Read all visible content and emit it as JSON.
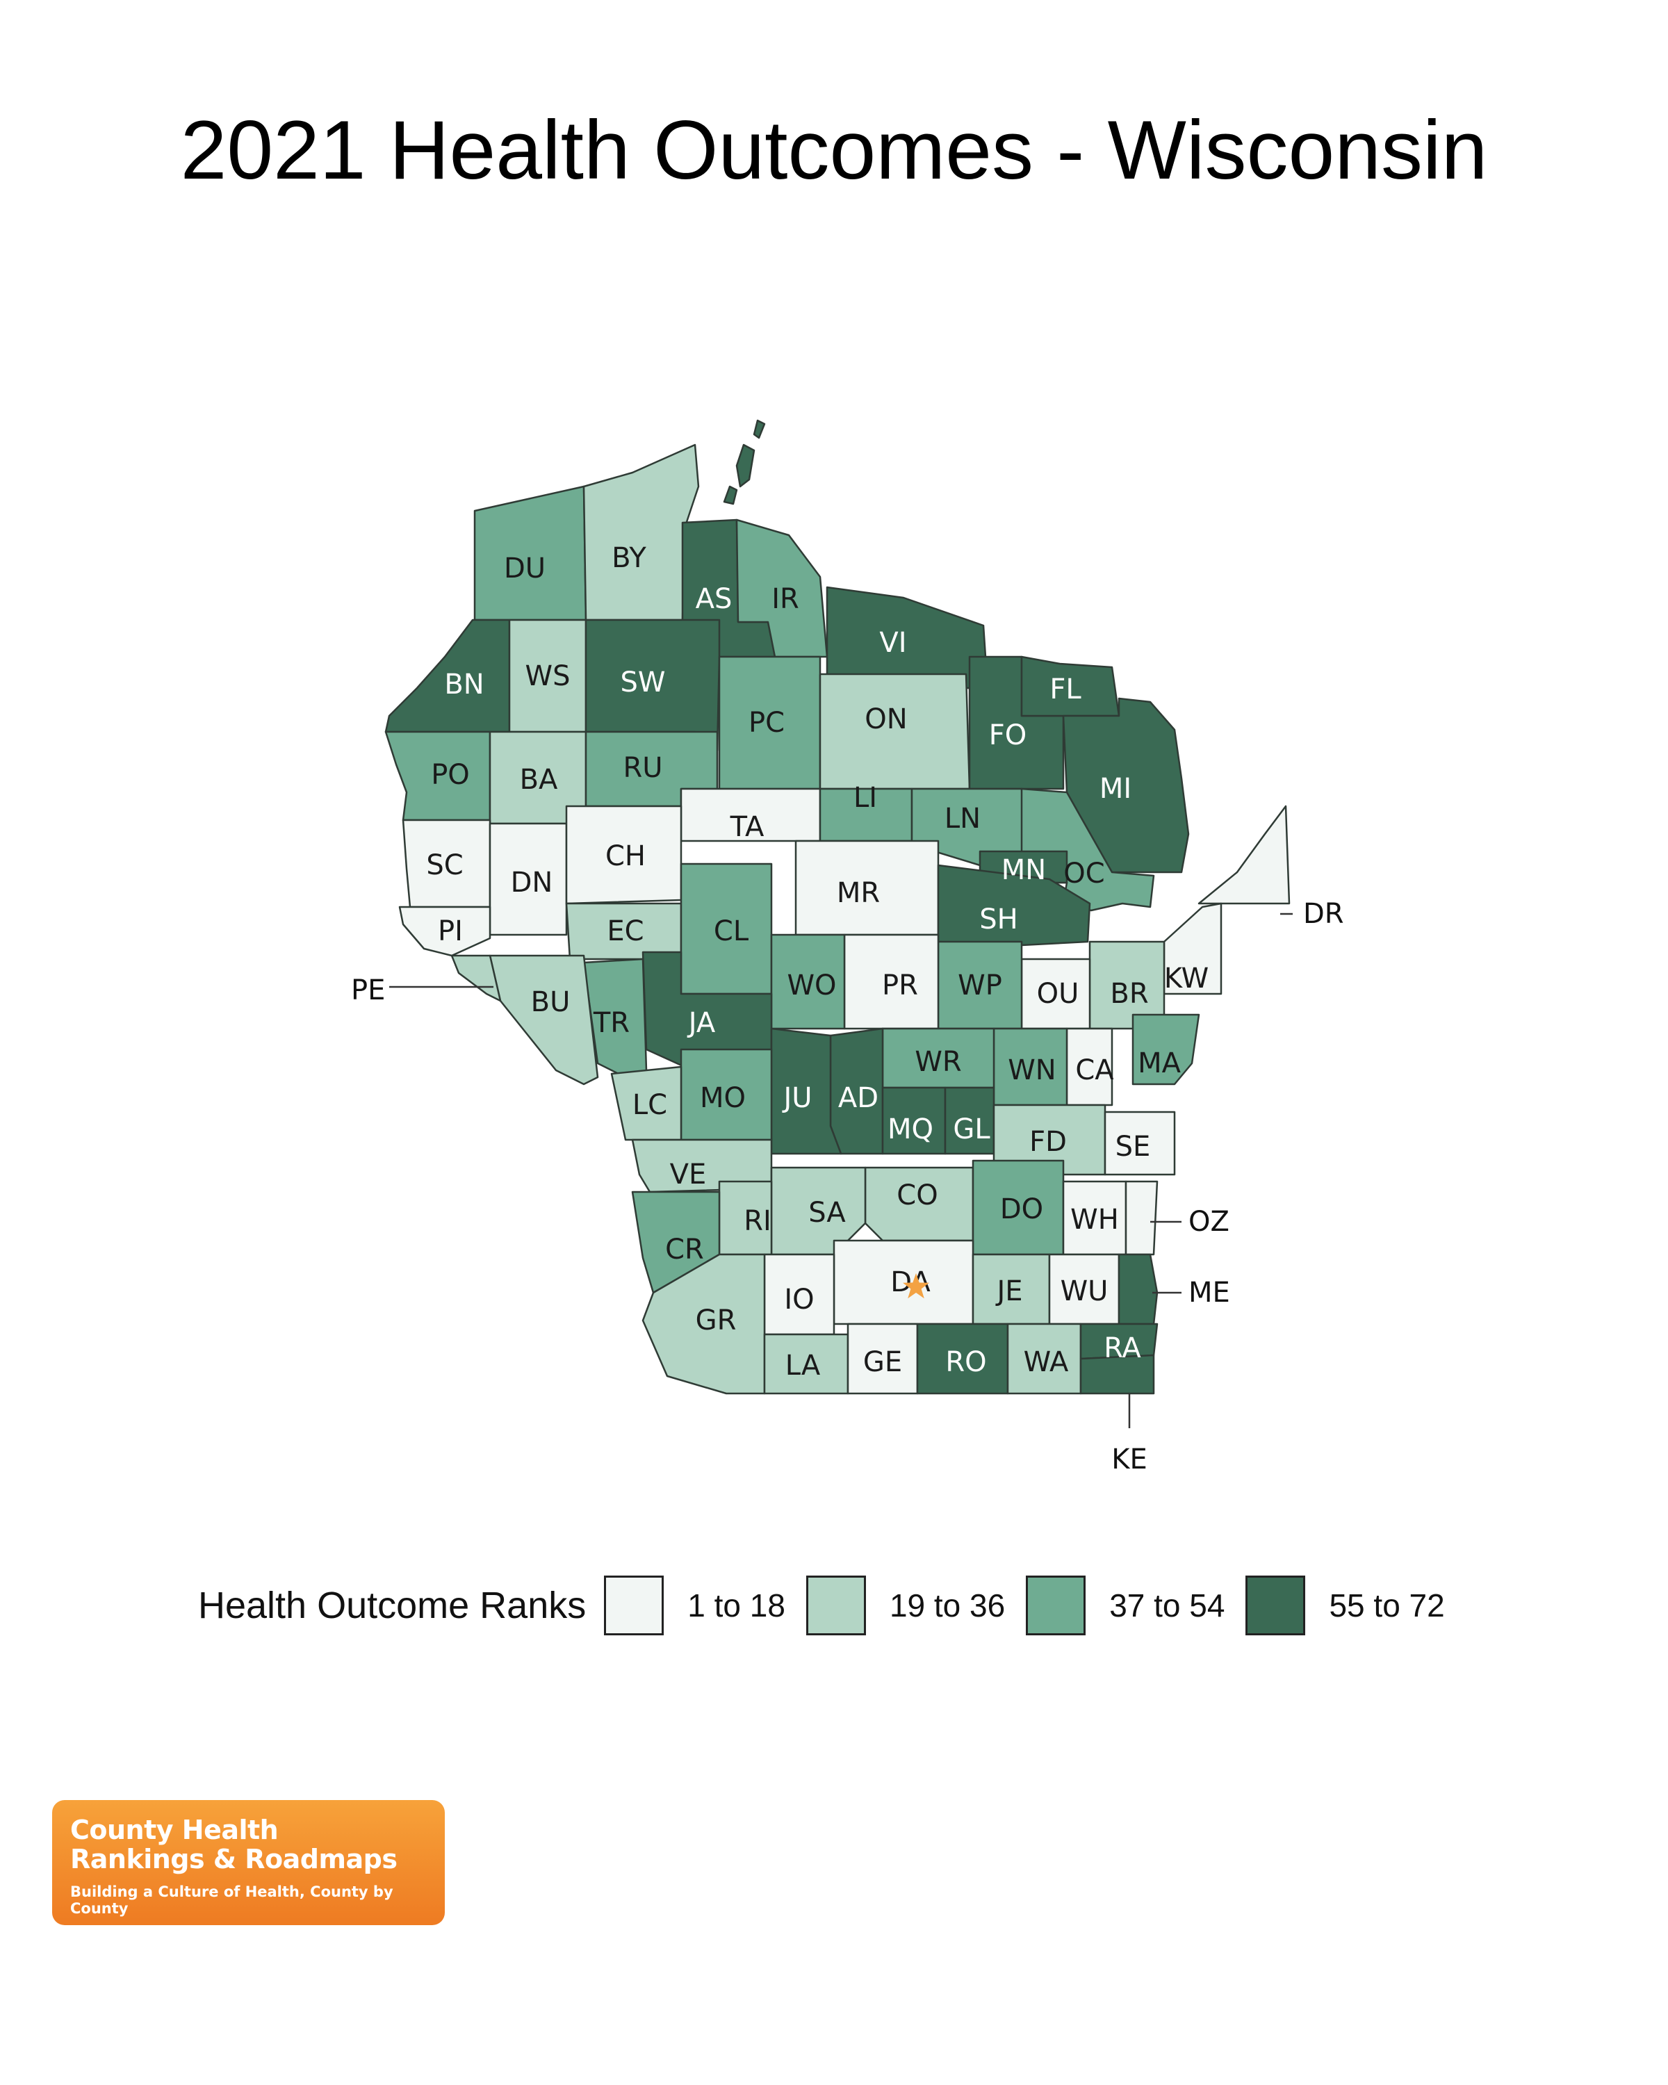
{
  "title": "2021 Health Outcomes - Wisconsin",
  "legend": {
    "title": "Health Outcome Ranks",
    "classes": [
      {
        "label": "1 to 18",
        "color": "#f2f6f4"
      },
      {
        "label": "19 to 36",
        "color": "#b3d5c5"
      },
      {
        "label": "37 to 54",
        "color": "#6fac92"
      },
      {
        "label": "55 to 72",
        "color": "#3a6a54"
      }
    ]
  },
  "highlight_icon": "star-icon",
  "counties": {
    "DU": {
      "label": "DU",
      "class": 2
    },
    "BY": {
      "label": "BY",
      "class": 1
    },
    "AS": {
      "label": "AS",
      "class": 3
    },
    "IR": {
      "label": "IR",
      "class": 2
    },
    "VI": {
      "label": "VI",
      "class": 3
    },
    "BN": {
      "label": "BN",
      "class": 3
    },
    "WS": {
      "label": "WS",
      "class": 1
    },
    "SW": {
      "label": "SW",
      "class": 3
    },
    "PC": {
      "label": "PC",
      "class": 2
    },
    "ON": {
      "label": "ON",
      "class": 1
    },
    "FO": {
      "label": "FO",
      "class": 3
    },
    "FL": {
      "label": "FL",
      "class": 3
    },
    "MI": {
      "label": "MI",
      "class": 3
    },
    "PO": {
      "label": "PO",
      "class": 2
    },
    "BA": {
      "label": "BA",
      "class": 1
    },
    "RU": {
      "label": "RU",
      "class": 2
    },
    "TA": {
      "label": "TA",
      "class": 0
    },
    "LI": {
      "label": "LI",
      "class": 2
    },
    "LN": {
      "label": "LN",
      "class": 2
    },
    "OC": {
      "label": "OC",
      "class": 2
    },
    "MN": {
      "label": "MN",
      "class": 3
    },
    "SC": {
      "label": "SC",
      "class": 0
    },
    "DN": {
      "label": "DN",
      "class": 0
    },
    "CH": {
      "label": "CH",
      "class": 0
    },
    "MR": {
      "label": "MR",
      "class": 0
    },
    "SH": {
      "label": "SH",
      "class": 3
    },
    "PI": {
      "label": "PI",
      "class": 0
    },
    "EC": {
      "label": "EC",
      "class": 1
    },
    "CL": {
      "label": "CL",
      "class": 2
    },
    "DR": {
      "label": "DR",
      "class": 0
    },
    "KW": {
      "label": "KW",
      "class": 0
    },
    "BR": {
      "label": "BR",
      "class": 1
    },
    "OU": {
      "label": "OU",
      "class": 0
    },
    "WP": {
      "label": "WP",
      "class": 2
    },
    "PR": {
      "label": "PR",
      "class": 0
    },
    "WO": {
      "label": "WO",
      "class": 2
    },
    "JA": {
      "label": "JA",
      "class": 3
    },
    "TR": {
      "label": "TR",
      "class": 2
    },
    "BU": {
      "label": "BU",
      "class": 1
    },
    "PE": {
      "label": "PE",
      "class": 1
    },
    "MA": {
      "label": "MA",
      "class": 2
    },
    "CA": {
      "label": "CA",
      "class": 0
    },
    "WN": {
      "label": "WN",
      "class": 2
    },
    "WR": {
      "label": "WR",
      "class": 2
    },
    "AD": {
      "label": "AD",
      "class": 3
    },
    "JU": {
      "label": "JU",
      "class": 3
    },
    "MO": {
      "label": "MO",
      "class": 2
    },
    "LC": {
      "label": "LC",
      "class": 1
    },
    "MQ": {
      "label": "MQ",
      "class": 3
    },
    "GL": {
      "label": "GL",
      "class": 3
    },
    "FD": {
      "label": "FD",
      "class": 1
    },
    "SE": {
      "label": "SE",
      "class": 0
    },
    "VE": {
      "label": "VE",
      "class": 1
    },
    "CO": {
      "label": "CO",
      "class": 1
    },
    "DO": {
      "label": "DO",
      "class": 2
    },
    "SA": {
      "label": "SA",
      "class": 1
    },
    "RI": {
      "label": "RI",
      "class": 1
    },
    "CR": {
      "label": "CR",
      "class": 2
    },
    "WH": {
      "label": "WH",
      "class": 0
    },
    "OZ": {
      "label": "OZ",
      "class": 0
    },
    "DA": {
      "label": "DA",
      "class": 0
    },
    "JE": {
      "label": "JE",
      "class": 1
    },
    "WU": {
      "label": "WU",
      "class": 0
    },
    "ME": {
      "label": "ME",
      "class": 3
    },
    "IO": {
      "label": "IO",
      "class": 0
    },
    "GR": {
      "label": "GR",
      "class": 1
    },
    "LA": {
      "label": "LA",
      "class": 1
    },
    "GE": {
      "label": "GE",
      "class": 0
    },
    "RO": {
      "label": "RO",
      "class": 3
    },
    "WA": {
      "label": "WA",
      "class": 1
    },
    "RA": {
      "label": "RA",
      "class": 3
    },
    "KE": {
      "label": "KE",
      "class": 3
    }
  },
  "logo": {
    "line1": "County Health",
    "line2": "Rankings & Roadmaps",
    "tagline": "Building a Culture of Health, County by County"
  }
}
